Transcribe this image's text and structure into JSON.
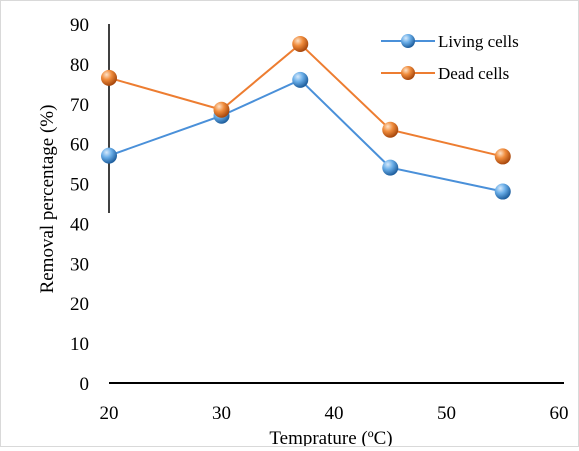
{
  "chart_data": {
    "type": "line",
    "title": "",
    "xlabel": "Temprature (ºC)",
    "ylabel": "Removal percentage (%)",
    "xlim": [
      20,
      60
    ],
    "ylim": [
      0,
      90
    ],
    "x_ticks": [
      20,
      30,
      40,
      50,
      60
    ],
    "y_ticks": [
      0,
      10,
      20,
      30,
      40,
      50,
      60,
      70,
      80,
      90
    ],
    "grid": false,
    "legend_position": "top-right",
    "series": [
      {
        "name": "Living cells",
        "color": "#4a90d9",
        "marker": "sphere",
        "x": [
          20,
          30,
          37,
          45,
          55
        ],
        "values": [
          57,
          67,
          76,
          54,
          48
        ]
      },
      {
        "name": "Dead cells",
        "color": "#ed7d31",
        "marker": "sphere",
        "x": [
          20,
          30,
          37,
          45,
          55
        ],
        "values": [
          76.5,
          68.5,
          85,
          63.5,
          56.8
        ]
      }
    ]
  }
}
